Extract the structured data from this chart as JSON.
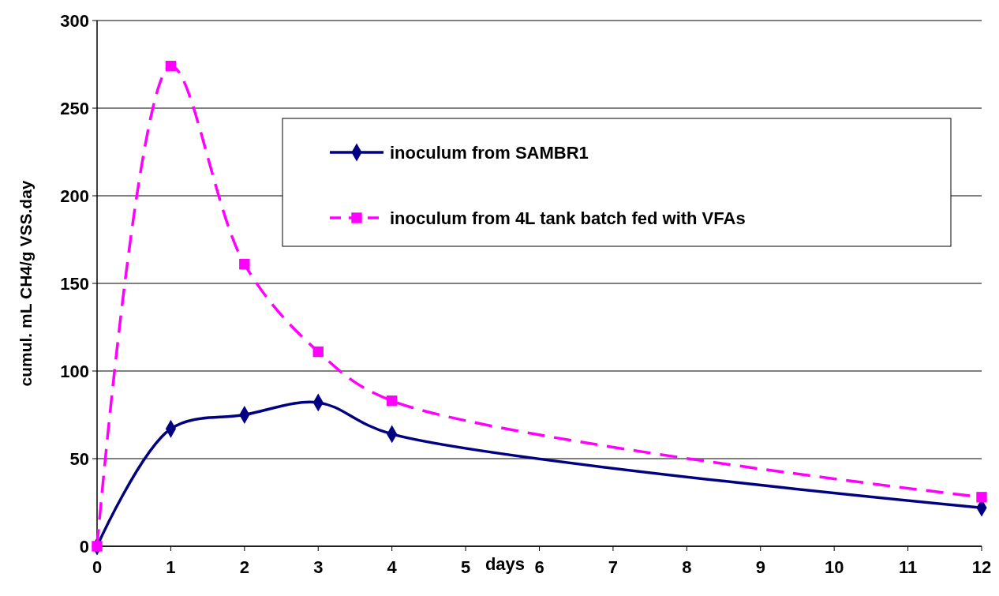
{
  "chart_data": {
    "type": "line",
    "xlabel": "days",
    "ylabel": "cumul. mL CH4/g VSS.day",
    "xlim": [
      0,
      12
    ],
    "xticks": [
      0,
      1,
      2,
      3,
      4,
      5,
      6,
      7,
      8,
      9,
      10,
      11,
      12
    ],
    "ylim": [
      0,
      300
    ],
    "yticks": [
      0,
      50,
      100,
      150,
      200,
      250,
      300
    ],
    "grid": "y",
    "legend": "top right",
    "series": [
      {
        "name": "inoculum from SAMBR1",
        "color": "#000080",
        "marker": "diamond",
        "line_style": "solid",
        "x": [
          0,
          1,
          2,
          3,
          4,
          12
        ],
        "values": [
          0,
          67,
          75,
          82,
          64,
          22
        ]
      },
      {
        "name": "inoculum from 4L tank batch fed with VFAs",
        "color": "#ff00ff",
        "marker": "square",
        "line_style": "dashed",
        "x": [
          0,
          1,
          2,
          3,
          4,
          12
        ],
        "values": [
          0,
          274,
          161,
          111,
          83,
          28
        ]
      }
    ]
  }
}
